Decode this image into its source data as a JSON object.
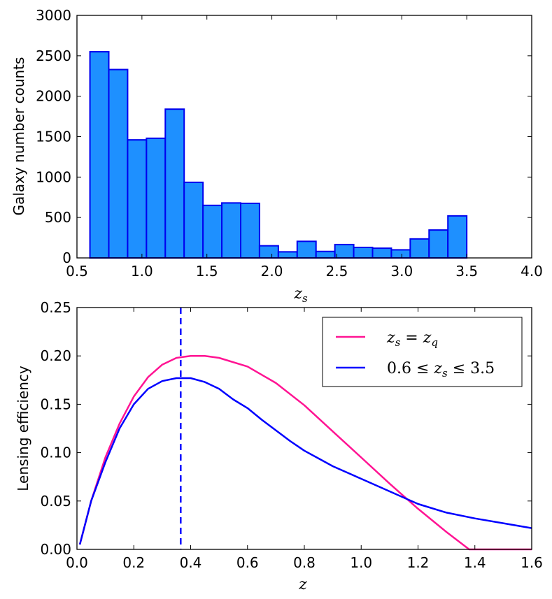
{
  "chart_data": [
    {
      "type": "bar",
      "xlabel": "z_s",
      "ylabel": "Galaxy number counts",
      "xlim": [
        0.5,
        4.0
      ],
      "ylim": [
        0,
        3000
      ],
      "xticks": [
        0.5,
        1.0,
        1.5,
        2.0,
        2.5,
        3.0,
        3.5,
        4.0
      ],
      "xtick_labels": [
        "0.5",
        "1.0",
        "1.5",
        "2.0",
        "2.5",
        "3.0",
        "3.5",
        "4.0"
      ],
      "yticks": [
        0,
        500,
        1000,
        1500,
        2000,
        2500,
        3000
      ],
      "ytick_labels": [
        "0",
        "500",
        "1000",
        "1500",
        "2000",
        "2500",
        "3000"
      ],
      "bin_edges": [
        0.6,
        0.745,
        0.89,
        1.035,
        1.18,
        1.325,
        1.47,
        1.615,
        1.76,
        1.905,
        2.05,
        2.195,
        2.34,
        2.485,
        2.63,
        2.775,
        2.92,
        3.065,
        3.21,
        3.355,
        3.5
      ],
      "values": [
        2550,
        2330,
        1460,
        1480,
        1840,
        935,
        650,
        680,
        675,
        150,
        75,
        205,
        80,
        165,
        130,
        120,
        100,
        235,
        345,
        520
      ],
      "fill_color": "#1e90ff",
      "edge_color": "#0000ee"
    },
    {
      "type": "line",
      "xlabel": "z",
      "ylabel": "Lensing efficiency",
      "xlim": [
        0.0,
        1.6
      ],
      "ylim": [
        0.0,
        0.25
      ],
      "xticks": [
        0.0,
        0.2,
        0.4,
        0.6,
        0.8,
        1.0,
        1.2,
        1.4,
        1.6
      ],
      "xtick_labels": [
        "0.0",
        "0.2",
        "0.4",
        "0.6",
        "0.8",
        "1.0",
        "1.2",
        "1.4",
        "1.6"
      ],
      "yticks": [
        0.0,
        0.05,
        0.1,
        0.15,
        0.2,
        0.25
      ],
      "ytick_labels": [
        "0.00",
        "0.05",
        "0.10",
        "0.15",
        "0.20",
        "0.25"
      ],
      "legend_position": "top-right",
      "vline": {
        "x": 0.365,
        "color": "#0000ff",
        "style": "dashed"
      },
      "series": [
        {
          "name": "z_s = z_q",
          "color": "#ff1493",
          "x": [
            0.01,
            0.05,
            0.1,
            0.15,
            0.2,
            0.25,
            0.3,
            0.35,
            0.4,
            0.45,
            0.5,
            0.6,
            0.7,
            0.8,
            0.9,
            1.0,
            1.1,
            1.2,
            1.3,
            1.38,
            1.4,
            1.6
          ],
          "y": [
            0.005,
            0.05,
            0.095,
            0.13,
            0.158,
            0.178,
            0.191,
            0.198,
            0.2,
            0.2,
            0.198,
            0.189,
            0.172,
            0.149,
            0.122,
            0.095,
            0.068,
            0.042,
            0.018,
            0.0,
            0.0,
            0.0
          ]
        },
        {
          "name": "0.6 ≤ z_s ≤ 3.5",
          "color": "#0000ff",
          "x": [
            0.01,
            0.05,
            0.1,
            0.15,
            0.2,
            0.25,
            0.3,
            0.35,
            0.4,
            0.45,
            0.5,
            0.55,
            0.6,
            0.65,
            0.7,
            0.75,
            0.8,
            0.85,
            0.9,
            1.0,
            1.1,
            1.2,
            1.3,
            1.4,
            1.5,
            1.6
          ],
          "y": [
            0.005,
            0.05,
            0.09,
            0.125,
            0.15,
            0.166,
            0.174,
            0.177,
            0.177,
            0.173,
            0.166,
            0.155,
            0.146,
            0.134,
            0.123,
            0.112,
            0.102,
            0.094,
            0.086,
            0.073,
            0.06,
            0.047,
            0.038,
            0.032,
            0.027,
            0.022
          ]
        }
      ]
    }
  ],
  "panel1": {
    "ylabel": "Galaxy number counts",
    "xlabel_main": "z",
    "xlabel_sub": "s"
  },
  "panel2": {
    "ylabel": "Lensing efficiency",
    "xlabel": "z",
    "legend": [
      {
        "main": "z",
        "sub": "s",
        "mid": " = ",
        "main2": "z",
        "sub2": "q"
      },
      {
        "pre": "0.6 ≤ ",
        "main": "z",
        "sub": "s",
        "post": " ≤ 3.5"
      }
    ]
  }
}
